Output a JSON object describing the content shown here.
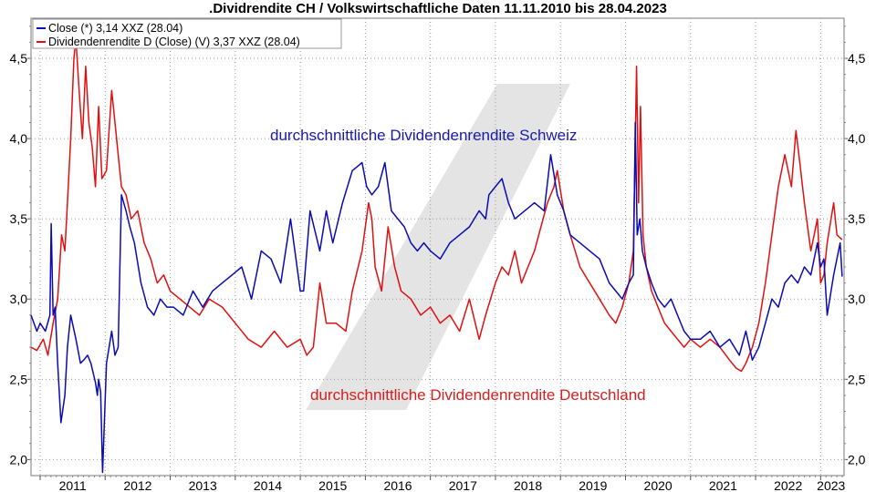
{
  "chart_data": {
    "type": "line",
    "title": ".Dividrendite CH / Volkswirtschaftliche Daten 11.11.2010 bis 28.04.2023",
    "xlabel": "",
    "ylabel": "",
    "xlim": [
      2010.86,
      2023.36
    ],
    "ylim": [
      1.9,
      4.75
    ],
    "y_ticks": [
      2.0,
      2.5,
      3.0,
      3.5,
      4.0,
      4.5
    ],
    "y_tick_labels": [
      "2,0",
      "2,5",
      "3,0",
      "3,5",
      "4,0",
      "4,5"
    ],
    "x_ticks": [
      2011,
      2012,
      2013,
      2014,
      2015,
      2016,
      2017,
      2018,
      2019,
      2020,
      2021,
      2022,
      2023
    ],
    "x_tick_labels": [
      "2011",
      "2012",
      "2013",
      "2014",
      "2015",
      "2016",
      "2017",
      "2018",
      "2019",
      "2020",
      "2021",
      "2022",
      "2023"
    ],
    "grid": "dotted",
    "legend_placement": "top-left",
    "legend": [
      "Close (*) 3,14 XXZ (28.04)",
      "Dividendenrendite D (Close) (V) 3,37 XXZ (28.04)"
    ],
    "annotations": [
      {
        "text": "durchschnittliche Dividendenrendite Schweiz",
        "color": "#1a1aa8"
      },
      {
        "text": "durchschnittliche Dividendenrendite Deutschland",
        "color": "#d42020"
      }
    ],
    "series": [
      {
        "color": "#0a0ab4",
        "x": [
          2010.86,
          2010.95,
          2011.0,
          2011.08,
          2011.15,
          2011.17,
          2011.2,
          2011.23,
          2011.27,
          2011.32,
          2011.38,
          2011.42,
          2011.47,
          2011.55,
          2011.62,
          2011.67,
          2011.73,
          2011.78,
          2011.85,
          2011.88,
          2011.9,
          2011.93,
          2011.96,
          2012.02,
          2012.1,
          2012.15,
          2012.2,
          2012.25,
          2012.32,
          2012.38,
          2012.45,
          2012.55,
          2012.65,
          2012.75,
          2012.85,
          2012.95,
          2013.05,
          2013.2,
          2013.35,
          2013.5,
          2013.65,
          2013.8,
          2013.95,
          2014.1,
          2014.25,
          2014.4,
          2014.55,
          2014.7,
          2014.85,
          2015.0,
          2015.05,
          2015.15,
          2015.3,
          2015.4,
          2015.5,
          2015.65,
          2015.8,
          2015.95,
          2016.02,
          2016.1,
          2016.2,
          2016.3,
          2016.4,
          2016.5,
          2016.6,
          2016.7,
          2016.8,
          2016.9,
          2017.0,
          2017.15,
          2017.3,
          2017.45,
          2017.6,
          2017.75,
          2017.85,
          2017.9,
          2018.0,
          2018.1,
          2018.2,
          2018.3,
          2018.45,
          2018.6,
          2018.75,
          2018.85,
          2018.95,
          2019.05,
          2019.15,
          2019.3,
          2019.45,
          2019.6,
          2019.75,
          2019.85,
          2019.95,
          2020.05,
          2020.12,
          2020.15,
          2020.18,
          2020.22,
          2020.26,
          2020.32,
          2020.4,
          2020.5,
          2020.6,
          2020.7,
          2020.8,
          2020.9,
          2021.0,
          2021.15,
          2021.3,
          2021.45,
          2021.6,
          2021.75,
          2021.85,
          2021.95,
          2022.05,
          2022.15,
          2022.25,
          2022.35,
          2022.45,
          2022.55,
          2022.65,
          2022.75,
          2022.85,
          2022.95,
          2023.0,
          2023.05,
          2023.1,
          2023.2,
          2023.3,
          2023.33
        ],
        "y": [
          2.9,
          2.8,
          2.85,
          2.8,
          2.9,
          3.47,
          2.9,
          2.95,
          2.6,
          2.23,
          2.4,
          2.7,
          2.9,
          2.75,
          2.6,
          2.62,
          2.65,
          2.6,
          2.48,
          2.4,
          2.5,
          2.42,
          1.92,
          2.6,
          2.8,
          2.65,
          2.7,
          3.65,
          3.55,
          3.45,
          3.35,
          3.1,
          2.95,
          2.9,
          3.0,
          2.95,
          2.95,
          2.9,
          3.05,
          2.95,
          3.05,
          3.1,
          3.15,
          3.2,
          3.0,
          3.3,
          3.25,
          3.1,
          3.5,
          3.05,
          3.05,
          3.55,
          3.3,
          3.55,
          3.35,
          3.6,
          3.8,
          3.85,
          3.7,
          3.65,
          3.7,
          3.85,
          3.55,
          3.5,
          3.45,
          3.35,
          3.3,
          3.35,
          3.3,
          3.25,
          3.35,
          3.4,
          3.45,
          3.55,
          3.5,
          3.65,
          3.7,
          3.75,
          3.6,
          3.5,
          3.55,
          3.6,
          3.55,
          3.9,
          3.65,
          3.55,
          3.4,
          3.35,
          3.3,
          3.25,
          3.1,
          3.05,
          3.0,
          3.1,
          3.15,
          4.1,
          3.4,
          3.5,
          3.3,
          3.2,
          3.1,
          3.0,
          2.95,
          3.0,
          2.9,
          2.8,
          2.75,
          2.75,
          2.8,
          2.7,
          2.75,
          2.65,
          2.8,
          2.62,
          2.7,
          2.85,
          3.0,
          2.95,
          3.1,
          3.15,
          3.1,
          3.2,
          3.15,
          3.35,
          3.2,
          3.25,
          2.9,
          3.15,
          3.35,
          3.14
        ]
      },
      {
        "color": "#e01010",
        "x": [
          2010.86,
          2010.95,
          2011.05,
          2011.12,
          2011.2,
          2011.27,
          2011.33,
          2011.38,
          2011.42,
          2011.47,
          2011.52,
          2011.55,
          2011.6,
          2011.65,
          2011.7,
          2011.75,
          2011.8,
          2011.85,
          2011.9,
          2011.95,
          2012.02,
          2012.1,
          2012.15,
          2012.2,
          2012.25,
          2012.32,
          2012.4,
          2012.5,
          2012.6,
          2012.7,
          2012.8,
          2012.9,
          2013.0,
          2013.15,
          2013.3,
          2013.45,
          2013.6,
          2013.8,
          2014.0,
          2014.2,
          2014.4,
          2014.6,
          2014.8,
          2015.0,
          2015.1,
          2015.2,
          2015.3,
          2015.4,
          2015.55,
          2015.7,
          2015.8,
          2015.95,
          2016.05,
          2016.1,
          2016.15,
          2016.25,
          2016.35,
          2016.45,
          2016.55,
          2016.7,
          2016.85,
          2017.0,
          2017.15,
          2017.3,
          2017.45,
          2017.6,
          2017.75,
          2017.85,
          2018.0,
          2018.1,
          2018.2,
          2018.3,
          2018.4,
          2018.5,
          2018.6,
          2018.7,
          2018.8,
          2018.9,
          2018.95,
          2019.05,
          2019.15,
          2019.3,
          2019.45,
          2019.6,
          2019.75,
          2019.85,
          2019.95,
          2020.05,
          2020.12,
          2020.17,
          2020.2,
          2020.23,
          2020.27,
          2020.32,
          2020.4,
          2020.5,
          2020.6,
          2020.7,
          2020.8,
          2020.9,
          2021.0,
          2021.15,
          2021.3,
          2021.45,
          2021.6,
          2021.7,
          2021.78,
          2021.85,
          2021.95,
          2022.05,
          2022.15,
          2022.25,
          2022.35,
          2022.45,
          2022.55,
          2022.62,
          2022.68,
          2022.75,
          2022.85,
          2022.95,
          2023.0,
          2023.05,
          2023.1,
          2023.2,
          2023.25,
          2023.33
        ],
        "y": [
          2.7,
          2.68,
          2.75,
          2.65,
          2.85,
          3.0,
          3.4,
          3.3,
          3.6,
          4.0,
          4.5,
          4.62,
          4.3,
          4.0,
          4.45,
          4.1,
          3.95,
          3.7,
          4.2,
          3.75,
          3.8,
          4.3,
          4.1,
          3.9,
          3.7,
          3.65,
          3.5,
          3.55,
          3.35,
          3.25,
          3.1,
          3.15,
          3.05,
          3.0,
          2.95,
          2.9,
          3.0,
          2.95,
          2.85,
          2.75,
          2.7,
          2.8,
          2.7,
          2.75,
          2.65,
          2.7,
          3.1,
          2.85,
          2.85,
          2.8,
          3.05,
          3.3,
          3.6,
          3.5,
          3.2,
          3.05,
          3.45,
          3.2,
          3.05,
          3.0,
          2.9,
          2.95,
          2.85,
          2.9,
          2.8,
          3.0,
          2.75,
          2.9,
          3.1,
          3.2,
          3.15,
          3.3,
          3.1,
          3.2,
          3.3,
          3.45,
          3.6,
          3.7,
          3.8,
          3.55,
          3.4,
          3.2,
          3.1,
          3.0,
          2.9,
          2.85,
          2.95,
          3.1,
          3.3,
          4.45,
          3.6,
          4.2,
          3.4,
          3.2,
          3.05,
          2.95,
          2.85,
          2.8,
          2.75,
          2.7,
          2.75,
          2.7,
          2.75,
          2.7,
          2.62,
          2.57,
          2.55,
          2.6,
          2.7,
          2.85,
          3.1,
          3.4,
          3.7,
          3.9,
          3.7,
          4.05,
          3.85,
          3.6,
          3.3,
          3.5,
          3.1,
          3.15,
          3.35,
          3.6,
          3.4,
          3.37
        ]
      }
    ]
  }
}
